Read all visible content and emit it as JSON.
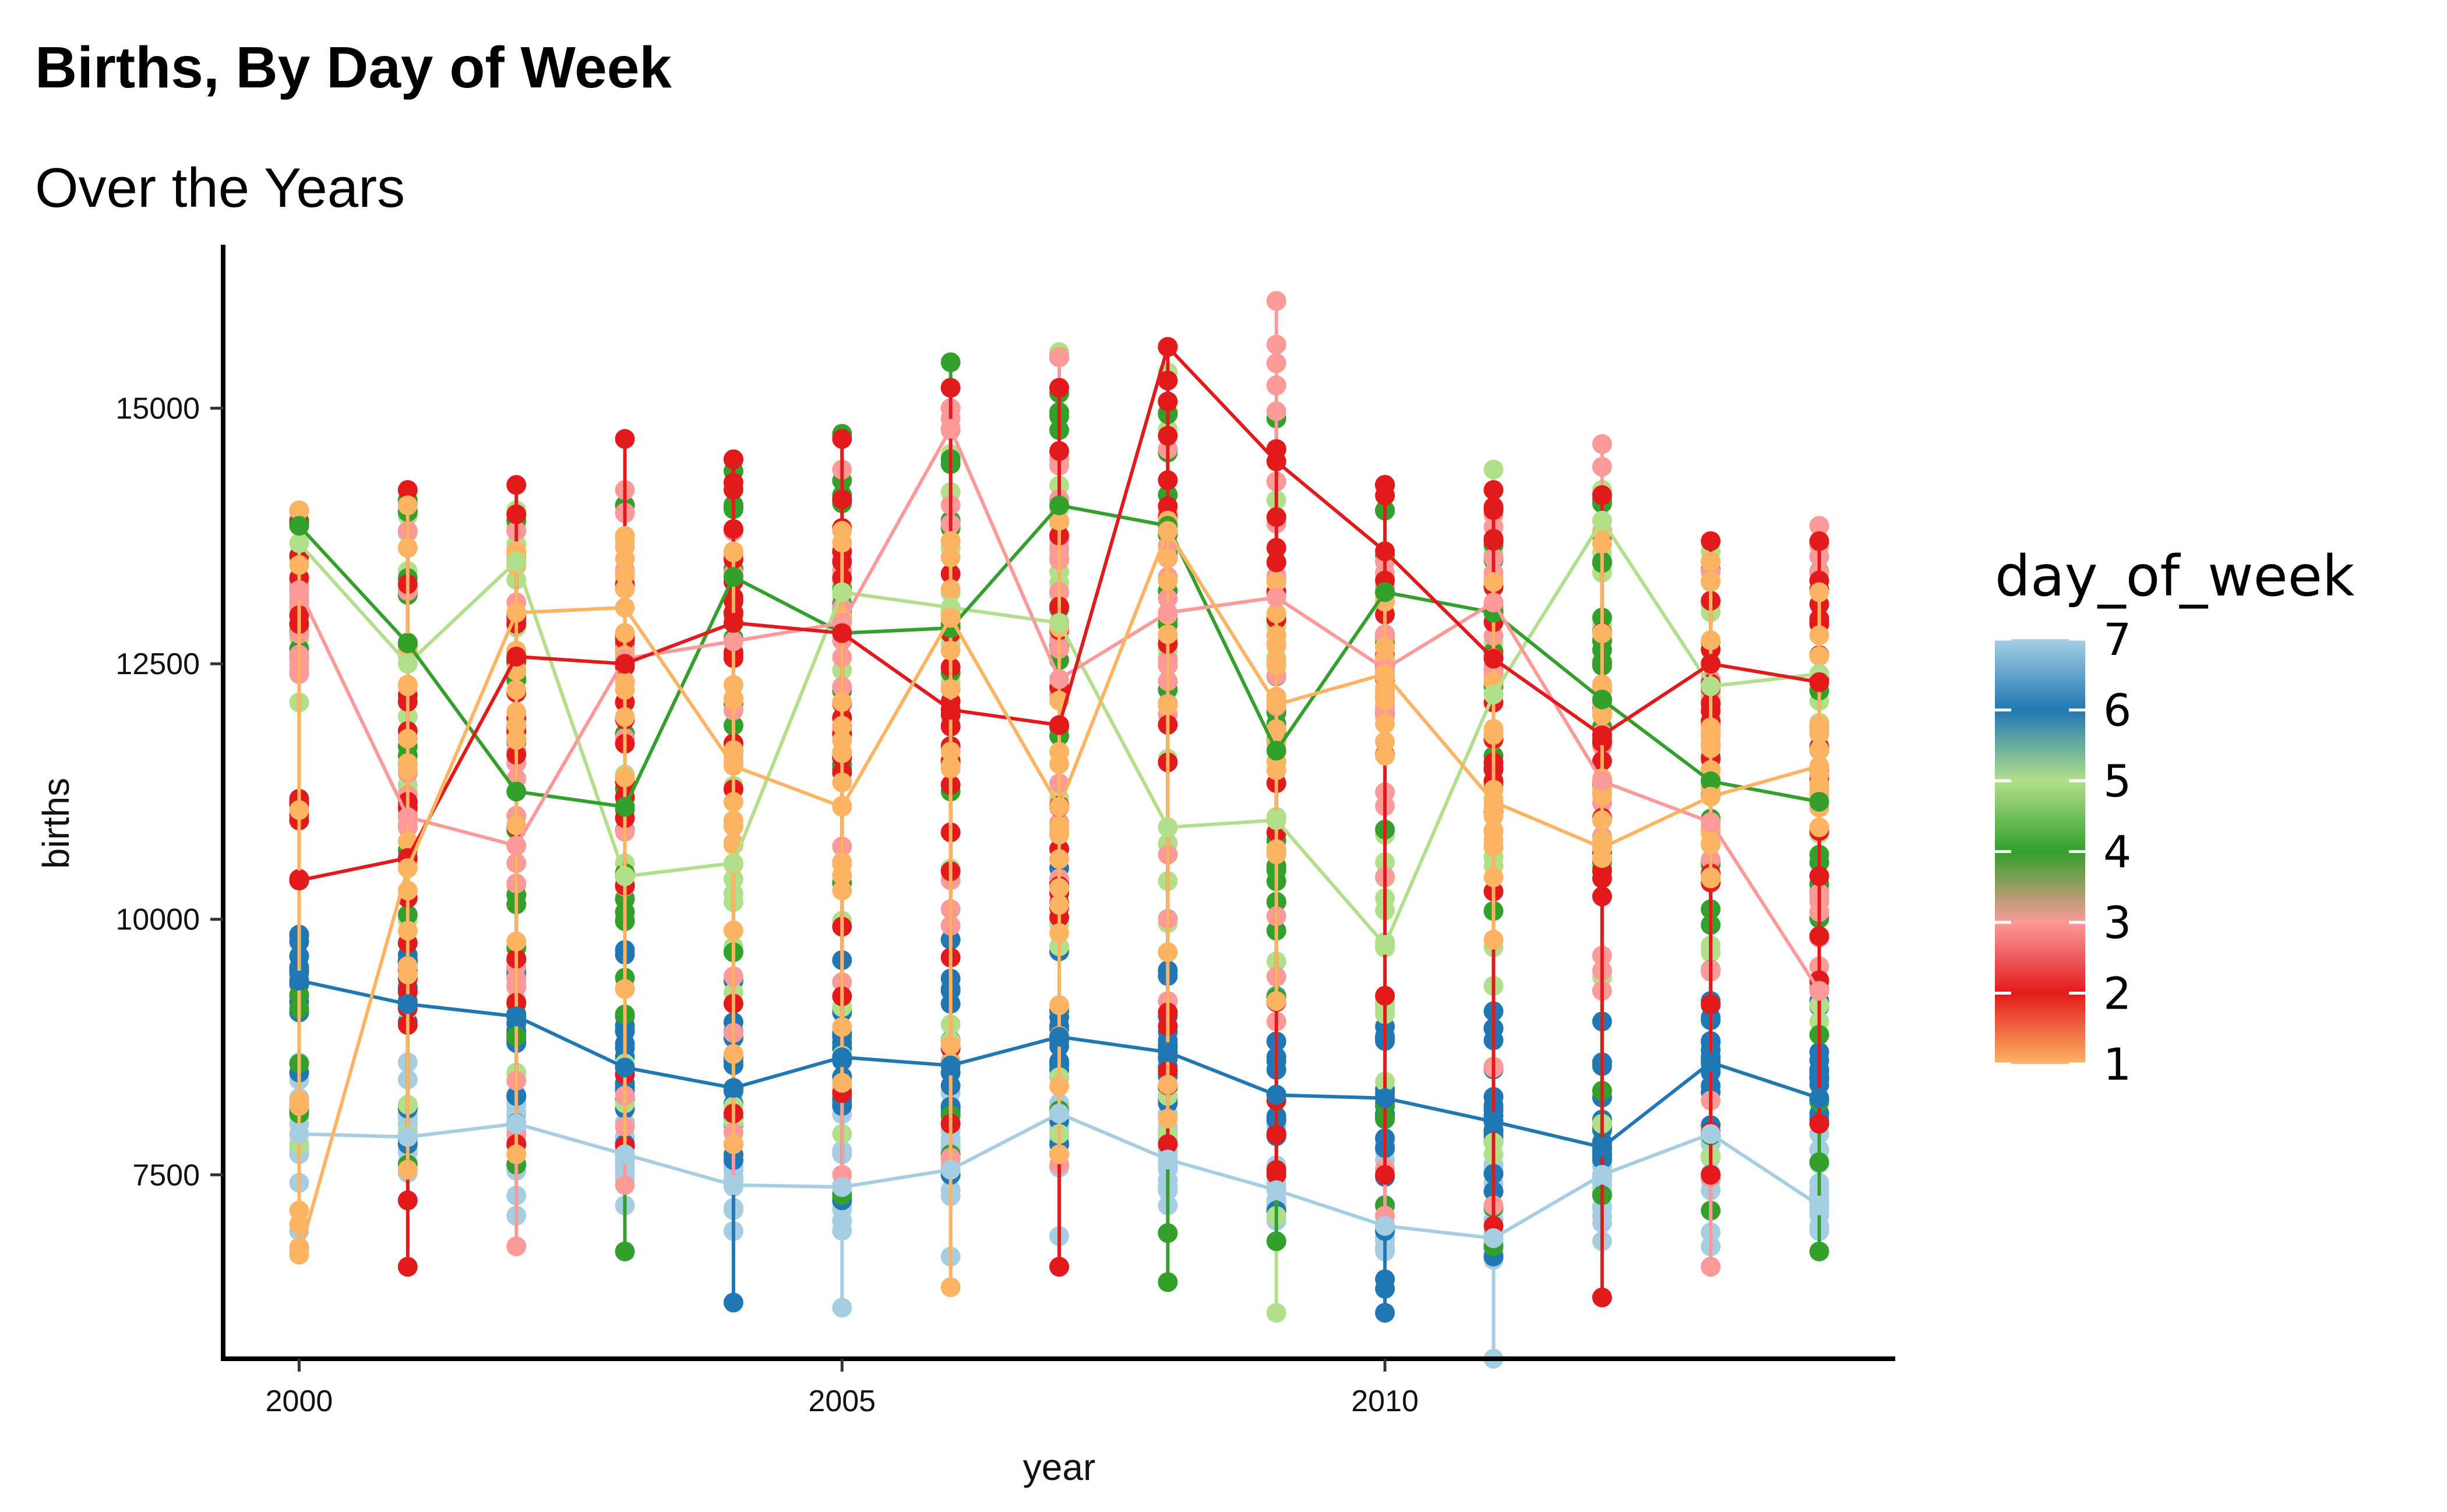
{
  "chart_data": {
    "type": "line",
    "title": "Births, By Day of Week",
    "subtitle": "Over the Years",
    "xlabel": "year",
    "ylabel": "births",
    "xlim": [
      1999.3,
      2014.7
    ],
    "ylim": [
      5700,
      16600
    ],
    "x_ticks": [
      2000,
      2005,
      2010
    ],
    "y_ticks": [
      7500,
      10000,
      12500,
      15000
    ],
    "grid": false,
    "x": [
      2000,
      2001,
      2002,
      2003,
      2004,
      2005,
      2006,
      2007,
      2008,
      2009,
      2010,
      2011,
      2012,
      2013,
      2014
    ],
    "series": [
      {
        "day": 1,
        "color": "#FDB462",
        "values": [
          6720,
          10500,
          13000,
          13050,
          11500,
          11100,
          12950,
          11100,
          13800,
          12100,
          12400,
          11150,
          10700,
          11200,
          11500
        ]
      },
      {
        "day": 2,
        "color": "#E31A1C",
        "values": [
          10380,
          10600,
          12570,
          12500,
          12900,
          12800,
          12050,
          11900,
          15600,
          14480,
          13600,
          12550,
          11800,
          12500,
          12320
        ]
      },
      {
        "day": 3,
        "color": "#FB9A99",
        "values": [
          13220,
          11000,
          10720,
          12550,
          12720,
          12900,
          14800,
          12350,
          13000,
          13150,
          12450,
          13100,
          11350,
          10950,
          9300
        ]
      },
      {
        "day": 4,
        "color": "#33A02C",
        "values": [
          13850,
          12700,
          11250,
          11100,
          13350,
          12800,
          12850,
          14050,
          13850,
          11650,
          13200,
          13000,
          12150,
          11350,
          11150
        ]
      },
      {
        "day": 5,
        "color": "#B2DF8A",
        "values": [
          13680,
          12500,
          13500,
          10420,
          10550,
          13200,
          13050,
          12900,
          10900,
          10970,
          9750,
          12200,
          13900,
          12280,
          12400
        ]
      },
      {
        "day": 6,
        "color": "#1F78B4",
        "values": [
          9400,
          9170,
          9050,
          8550,
          8350,
          8650,
          8570,
          8850,
          8700,
          8280,
          8250,
          8020,
          7770,
          8600,
          8250
        ]
      },
      {
        "day": 7,
        "color": "#A6CEE3",
        "values": [
          7900,
          7870,
          8000,
          7700,
          7400,
          7380,
          7550,
          8100,
          7650,
          7350,
          7000,
          6880,
          7500,
          7900,
          7200
        ]
      }
    ],
    "extremes": {
      "1": [
        [
          6720,
          14000
        ],
        [
          7550,
          14050
        ],
        [
          7700,
          13600
        ],
        [
          7700,
          13750
        ],
        [
          7800,
          13600
        ],
        [
          8400,
          13800
        ],
        [
          6400,
          13700
        ],
        [
          7700,
          13900
        ],
        [
          8050,
          13900
        ],
        [
          9200,
          13300
        ],
        [
          11600,
          13200
        ],
        [
          9800,
          13300
        ],
        [
          10600,
          13800
        ],
        [
          10400,
          13500
        ],
        [
          10900,
          13200
        ]
      ],
      "2": [
        [
          10380,
          14000
        ],
        [
          6600,
          14200
        ],
        [
          7800,
          14250
        ],
        [
          7700,
          14700
        ],
        [
          8100,
          14500
        ],
        [
          8300,
          14700
        ],
        [
          8000,
          15200
        ],
        [
          6600,
          15200
        ],
        [
          7800,
          15600
        ],
        [
          7500,
          14600
        ],
        [
          7500,
          14250
        ],
        [
          7000,
          14200
        ],
        [
          6300,
          14150
        ],
        [
          7500,
          13700
        ],
        [
          8000,
          13700
        ]
      ],
      "3": [
        [
          12400,
          13300
        ],
        [
          10900,
          13800
        ],
        [
          6800,
          13800
        ],
        [
          7400,
          14200
        ],
        [
          7400,
          13800
        ],
        [
          7500,
          14400
        ],
        [
          7600,
          15000
        ],
        [
          7600,
          15500
        ],
        [
          9200,
          14600
        ],
        [
          9000,
          16050
        ],
        [
          7100,
          13500
        ],
        [
          7200,
          14200
        ],
        [
          9300,
          14650
        ],
        [
          6600,
          13400
        ],
        [
          9300,
          13850
        ]
      ],
      "4": [
        [
          8100,
          13900
        ],
        [
          7600,
          14100
        ],
        [
          7600,
          13900
        ],
        [
          6750,
          14050
        ],
        [
          7800,
          14500
        ],
        [
          7300,
          14750
        ],
        [
          7700,
          15450
        ],
        [
          7700,
          15500
        ],
        [
          6450,
          14950
        ],
        [
          6850,
          14900
        ],
        [
          7200,
          14000
        ],
        [
          6800,
          13700
        ],
        [
          7300,
          14100
        ],
        [
          7150,
          13500
        ],
        [
          6750,
          13400
        ]
      ],
      "5": [
        [
          7800,
          13900
        ],
        [
          7900,
          14200
        ],
        [
          8500,
          14000
        ],
        [
          8200,
          13700
        ],
        [
          7800,
          13600
        ],
        [
          7900,
          13400
        ],
        [
          7700,
          15200
        ],
        [
          7900,
          15550
        ],
        [
          7900,
          15350
        ],
        [
          6150,
          14100
        ],
        [
          7000,
          13000
        ],
        [
          7700,
          14400
        ],
        [
          8000,
          14200
        ],
        [
          7500,
          13600
        ],
        [
          9000,
          12400
        ]
      ],
      "6": [
        [
          8500,
          9850
        ],
        [
          7800,
          9650
        ],
        [
          7600,
          9600
        ],
        [
          7800,
          9700
        ],
        [
          6250,
          9400
        ],
        [
          7250,
          9600
        ],
        [
          7500,
          9800
        ],
        [
          7800,
          10500
        ],
        [
          7900,
          9500
        ],
        [
          7150,
          9250
        ],
        [
          6150,
          8950
        ],
        [
          6700,
          9100
        ],
        [
          7650,
          9000
        ],
        [
          7900,
          9200
        ],
        [
          8000,
          9200
        ]
      ],
      "7": [
        [
          6950,
          8600
        ],
        [
          7250,
          8600
        ],
        [
          7100,
          8500
        ],
        [
          7200,
          8300
        ],
        [
          6950,
          8300
        ],
        [
          6200,
          8200
        ],
        [
          6700,
          8300
        ],
        [
          6900,
          8200
        ],
        [
          7200,
          8100
        ],
        [
          7050,
          8000
        ],
        [
          6750,
          7800
        ],
        [
          5700,
          7600
        ],
        [
          6850,
          7700
        ],
        [
          6800,
          7900
        ],
        [
          6950,
          7900
        ]
      ]
    },
    "legend": {
      "title": "day_of_week",
      "labels": [
        "7",
        "6",
        "5",
        "4",
        "3",
        "2",
        "1"
      ],
      "range": [
        1,
        7
      ],
      "type": "colorbar"
    }
  }
}
